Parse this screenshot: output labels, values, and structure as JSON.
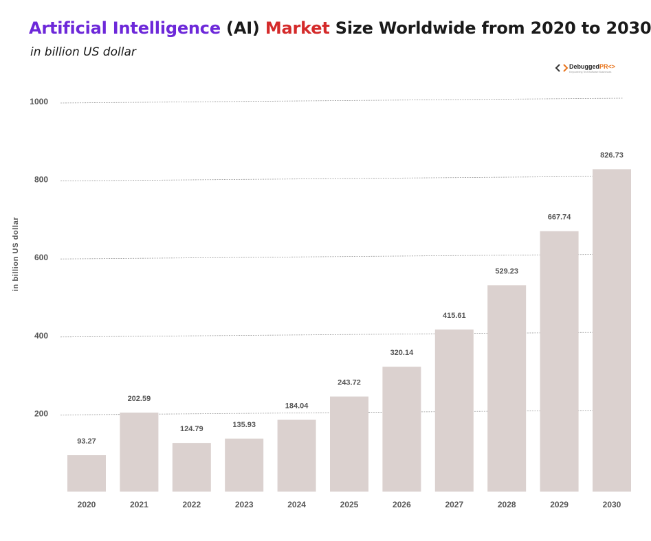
{
  "title": {
    "part1": "Artificial Intelligence",
    "part2": " (AI) ",
    "part3": "Market",
    "part4": " Size Worldwide from 2020 to 2030"
  },
  "subtitle": "in billion US dollar",
  "logo": {
    "name_main": "Debugged",
    "name_accent": "PR",
    "tagline": "Empowering Tech/Software Businesses"
  },
  "colors": {
    "bar": "#dbd1cf",
    "title_purple": "#6d28d9",
    "title_red": "#d42a2a",
    "grid": "#9a9a9a",
    "text": "#555555"
  },
  "chart_data": {
    "type": "bar",
    "title": "Artificial Intelligence (AI) Market Size Worldwide from 2020 to 2030",
    "subtitle": "in billion US dollar",
    "xlabel": "",
    "ylabel": "in billion US dollar",
    "categories": [
      "2020",
      "2021",
      "2022",
      "2023",
      "2024",
      "2025",
      "2026",
      "2027",
      "2028",
      "2029",
      "2030"
    ],
    "values": [
      93.27,
      202.59,
      124.79,
      135.93,
      184.04,
      243.72,
      320.14,
      415.61,
      529.23,
      667.74,
      826.73
    ],
    "value_labels": [
      "93.27",
      "202.59",
      "124.79",
      "135.93",
      "184.04",
      "243.72",
      "320.14",
      "415.61",
      "529.23",
      "667.74",
      "826.73"
    ],
    "yticks": [
      "200",
      "400",
      "600",
      "800",
      "1000"
    ],
    "grid": true,
    "legend": "none"
  }
}
